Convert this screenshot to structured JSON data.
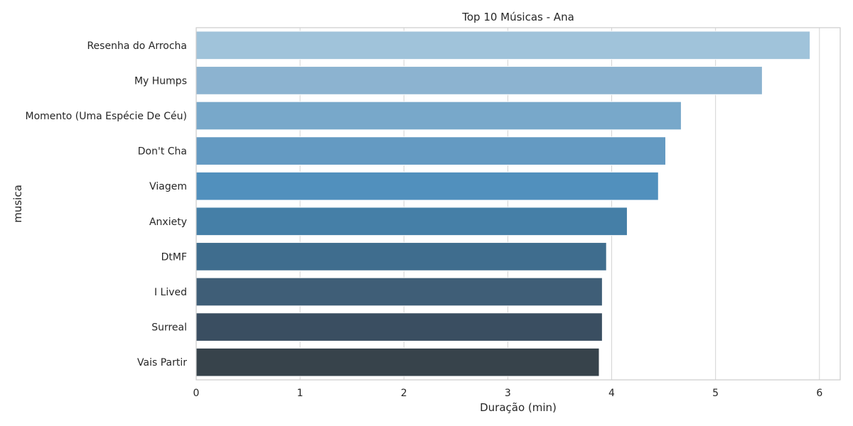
{
  "chart_data": {
    "type": "bar",
    "orientation": "horizontal",
    "title": "Top 10 Músicas - Ana",
    "xlabel": "Duração (min)",
    "ylabel": "musica",
    "categories": [
      "Resenha do Arrocha",
      "My Humps",
      "Momento (Uma Espécie De Céu)",
      "Don't Cha",
      "Viagem",
      "Anxiety",
      "DtMF",
      "I Lived",
      "Surreal",
      "Vais Partir"
    ],
    "values": [
      5.91,
      5.45,
      4.67,
      4.52,
      4.45,
      4.15,
      3.95,
      3.91,
      3.91,
      3.88
    ],
    "xlim": [
      0,
      6.2
    ],
    "xticks": [
      0,
      1,
      2,
      3,
      4,
      5,
      6
    ],
    "grid": true,
    "colors": [
      "#a0c3da",
      "#8cb3d0",
      "#78a8ca",
      "#649ac2",
      "#5190bd",
      "#457fa7",
      "#3f6d8e",
      "#3f5e77",
      "#3a4e61",
      "#37434b"
    ],
    "edge_color": "#ffffff",
    "grid_color": "#d4d4d4",
    "spine_color": "#cccccc"
  }
}
